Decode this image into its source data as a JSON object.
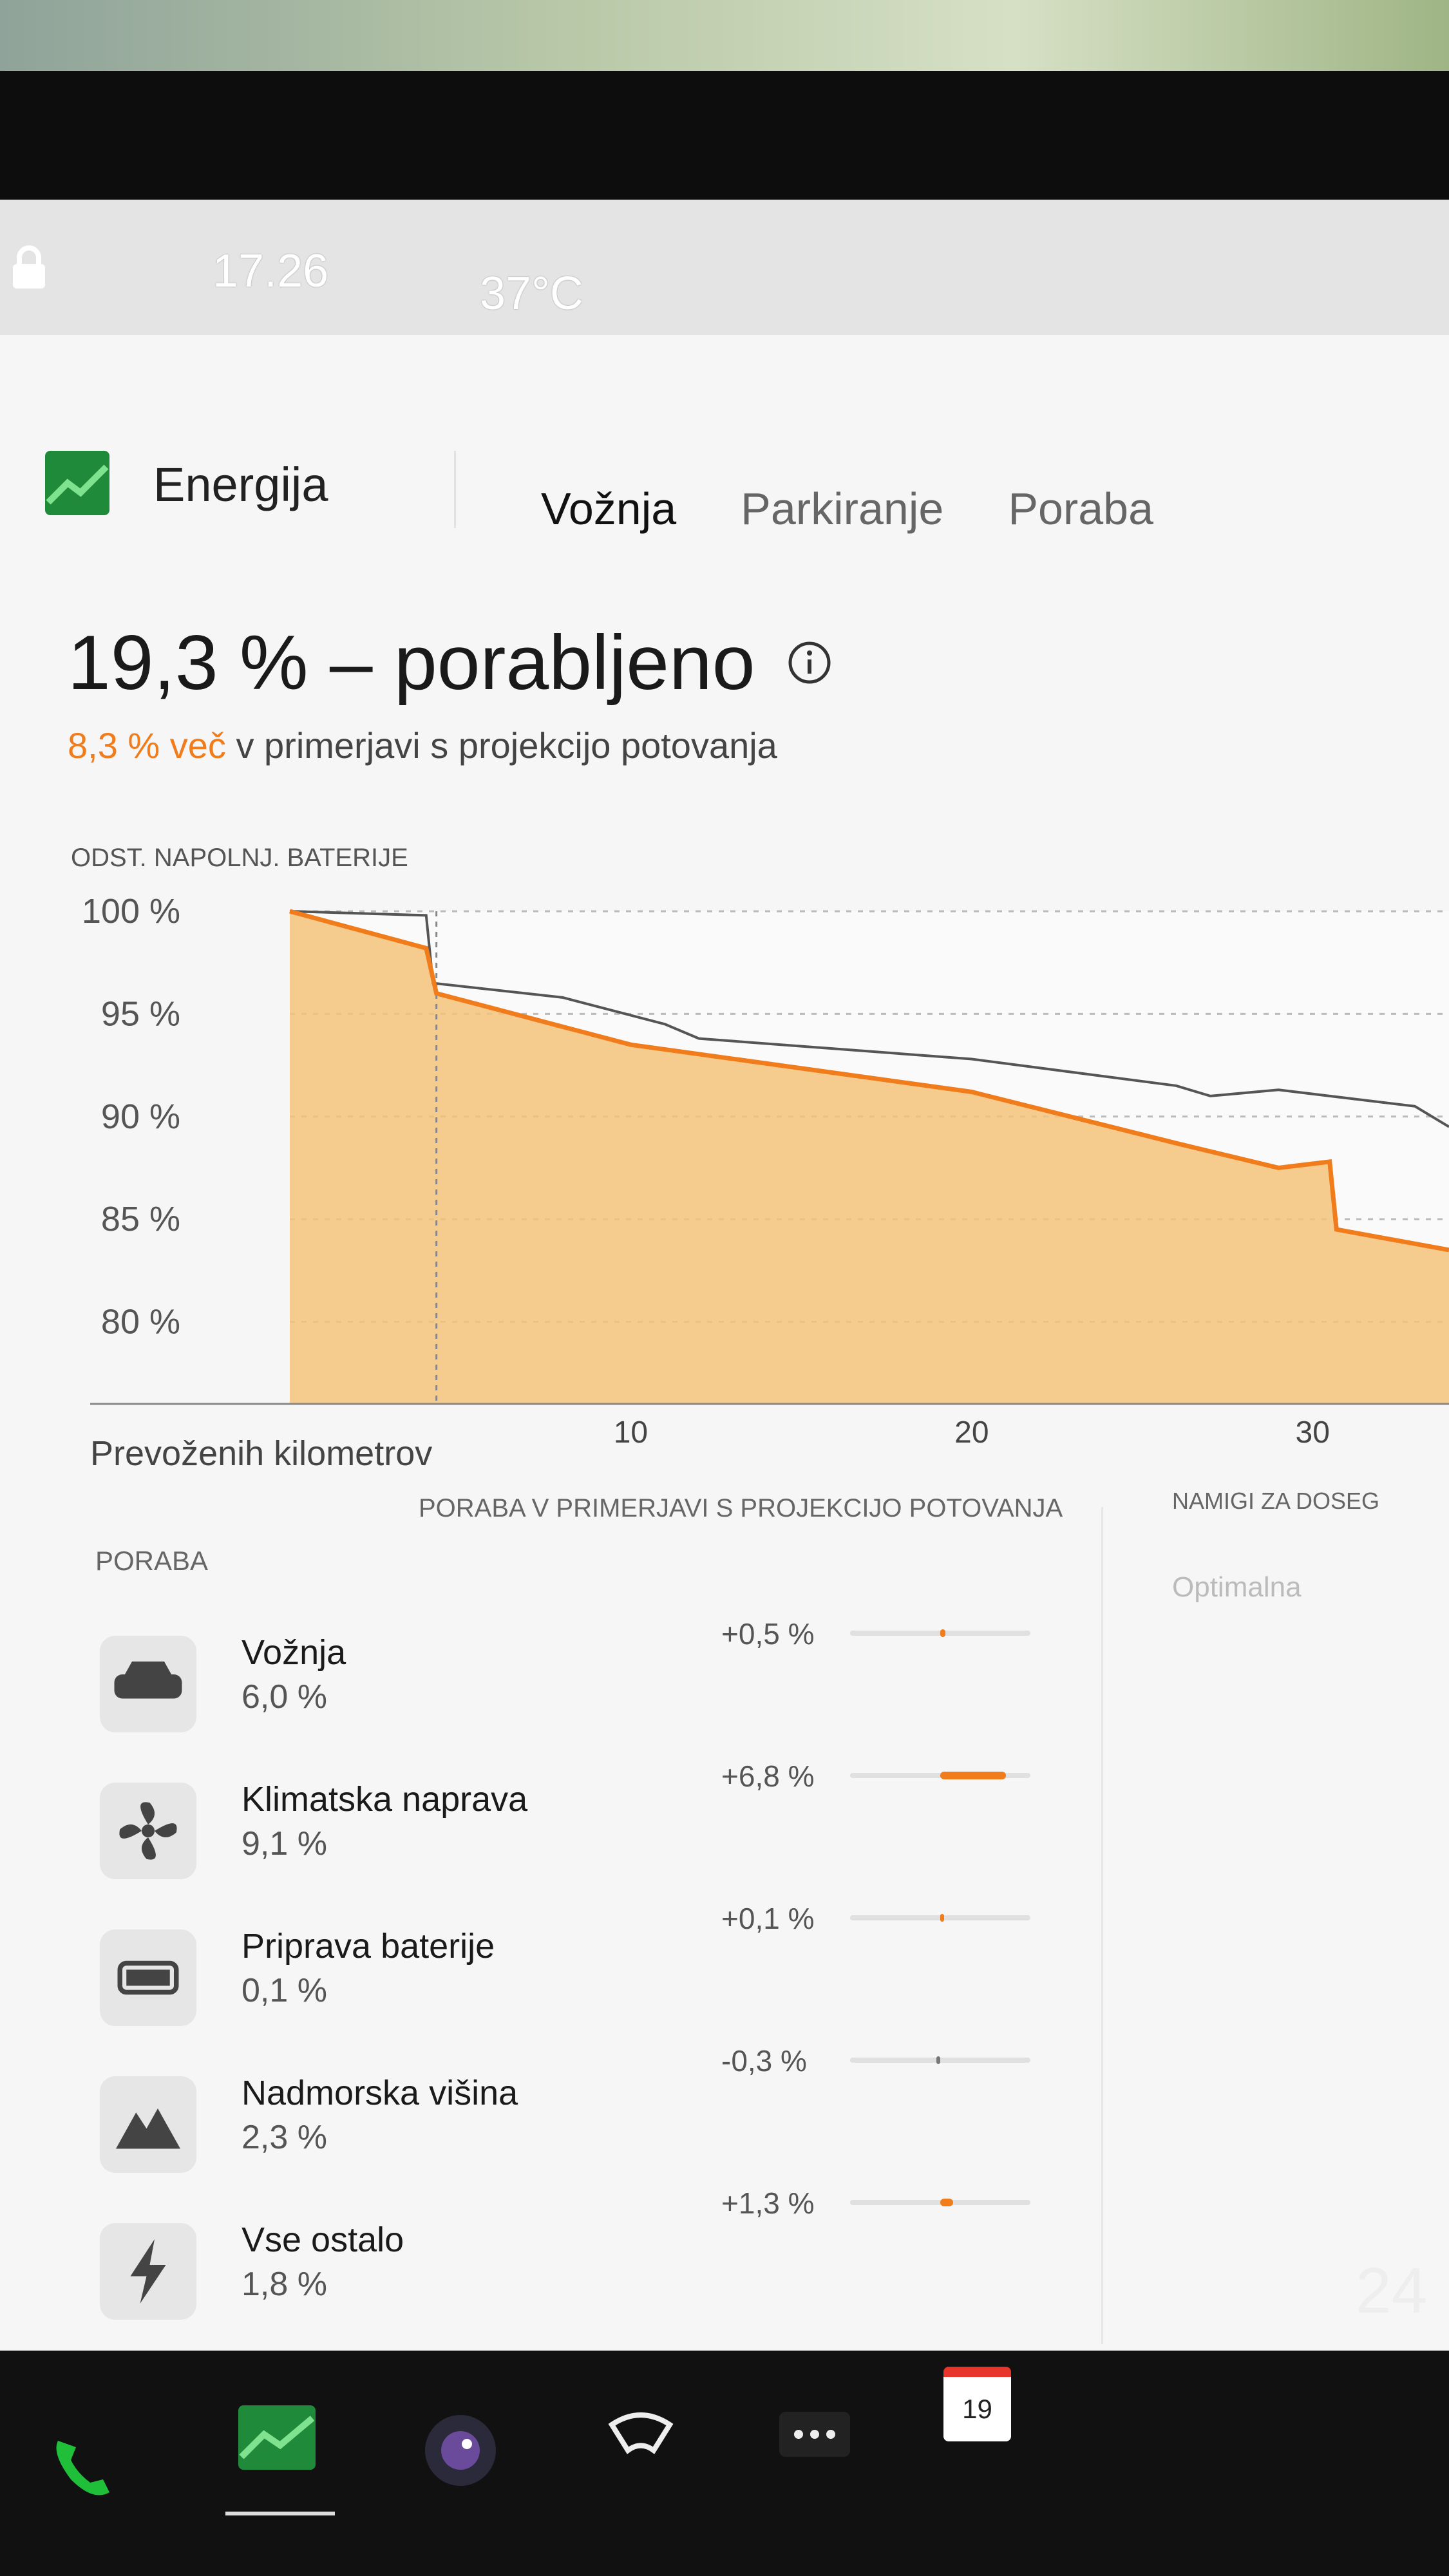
{
  "status_bar": {
    "time": "17.26",
    "temperature": "37°C"
  },
  "header": {
    "title": "Energija",
    "tabs": [
      "Vožnja",
      "Parkiranje",
      "Poraba"
    ]
  },
  "summary": {
    "title": "19,3 % – porabljeno",
    "highlight": "8,3 % več",
    "subtitle": "v primerjavi s projekcijo potovanja"
  },
  "chart_data": {
    "type": "line",
    "y_label": "ODST. NAPOLNJ. BATERIJE",
    "x_label": "Prevoženih kilometrov",
    "xlim": [
      0,
      34
    ],
    "xticks": [
      10,
      20,
      30
    ],
    "ylim": [
      76,
      100
    ],
    "yticks": [
      {
        "value": 80,
        "label": "80 %"
      },
      {
        "value": 85,
        "label": "85 %"
      },
      {
        "value": 90,
        "label": "90 %"
      },
      {
        "value": 95,
        "label": "95 %"
      },
      {
        "value": 100,
        "label": "100 %"
      }
    ],
    "grid": true,
    "series": [
      {
        "color": "#555555",
        "x": [
          0,
          4,
          4.2,
          8,
          11,
          12,
          20,
          26,
          27,
          29,
          33,
          34
        ],
        "values": [
          100,
          99.8,
          96.5,
          95.8,
          94.5,
          93.8,
          92.8,
          91.5,
          91,
          91.3,
          90.5,
          89.5
        ]
      },
      {
        "color": "#f07c1c",
        "fill": "#f5c27a",
        "x": [
          0,
          4,
          4.3,
          10,
          20,
          26,
          29,
          30.5,
          30.7,
          34
        ],
        "values": [
          100,
          98.2,
          96,
          93.5,
          91.2,
          88.7,
          87.5,
          87.8,
          84.5,
          83.5
        ]
      }
    ]
  },
  "consumption": {
    "heading": "PORABA",
    "compare_heading": "PORABA V PRIMERJAVI S PROJEKCIJO POTOVANJA",
    "rows": [
      {
        "name": "Vožnja",
        "value": "6,0 %",
        "delta": {
          "value": 0.5,
          "label": "+0,5 %"
        }
      },
      {
        "name": "Klimatska naprava",
        "value": "9,1 %",
        "delta": {
          "value": 6.8,
          "label": "+6,8 %"
        }
      },
      {
        "name": "Priprava baterije",
        "value": "0,1 %",
        "delta": {
          "value": 0.1,
          "label": "+0,1 %"
        }
      },
      {
        "name": "Nadmorska višina",
        "value": "2,3 %",
        "delta": {
          "value": -0.3,
          "label": "-0,3 %"
        }
      },
      {
        "name": "Vse ostalo",
        "value": "1,8 %",
        "delta": {
          "value": 1.3,
          "label": "+1,3 %"
        }
      }
    ]
  },
  "tips": {
    "heading": "NAMIGI ZA DOSEG",
    "status": "Optimalna"
  },
  "taskbar": {
    "calendar_day": "19",
    "right_text": "24"
  }
}
